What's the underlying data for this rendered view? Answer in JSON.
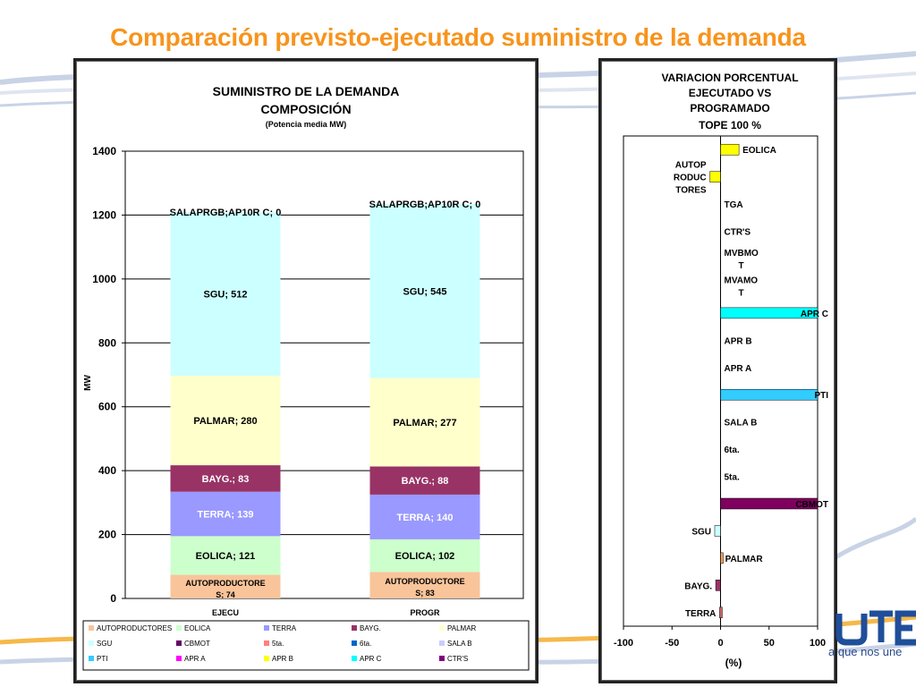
{
  "slide": {
    "title": "Comparación previsto-ejecutado suministro de la demanda",
    "tagline": "a que nos une"
  },
  "colors": {
    "title": "#f7941d",
    "AUTOPRODUCTORES": "#f9c49a",
    "EOLICA": "#ccffcc",
    "TERRA": "#9999ff",
    "BAYG.": "#993366",
    "PALMAR": "#ffffcc",
    "SGU": "#ccffff",
    "CBMOT": "#660066",
    "5ta.": "#ff8080",
    "6ta.": "#0066cc",
    "SALA B": "#ccccff",
    "PTI": "#33ccff",
    "APR A": "#ff00ff",
    "APR B": "#ffff00",
    "APR C": "#00ffff",
    "CTR'S": "#800080"
  },
  "chart_data": [
    {
      "type": "bar",
      "stacked": true,
      "title": "SUMINISTRO DE LA DEMANDA",
      "subtitle": "COMPOSICIÓN",
      "subtitle2": "(Potencia media MW)",
      "ylabel": "MW",
      "xlabel": "",
      "ylim": [
        0,
        1400
      ],
      "yticks": [
        "0",
        "200",
        "400",
        "600",
        "800",
        "1000",
        "1200",
        "1400"
      ],
      "grid": true,
      "legend_position": "bottom",
      "categories": [
        "EJECU",
        "PROGR"
      ],
      "series": [
        {
          "name": "AUTOPRODUCTORES",
          "values": [
            74,
            83
          ],
          "labels": [
            "AUTOPRODUCTORE S; 74",
            "AUTOPRODUCTORE S; 83"
          ]
        },
        {
          "name": "EOLICA",
          "values": [
            121,
            102
          ],
          "labels": [
            "EOLICA; 121",
            "EOLICA; 102"
          ]
        },
        {
          "name": "TERRA",
          "values": [
            139,
            140
          ],
          "labels": [
            "TERRA; 139",
            "TERRA; 140"
          ]
        },
        {
          "name": "BAYG.",
          "values": [
            83,
            88
          ],
          "labels": [
            "BAYG.; 83",
            "BAYG.; 88"
          ]
        },
        {
          "name": "PALMAR",
          "values": [
            280,
            277
          ],
          "labels": [
            "PALMAR; 280",
            "PALMAR; 277"
          ]
        },
        {
          "name": "SGU",
          "values": [
            512,
            545
          ],
          "labels": [
            "SGU; 512",
            "SGU; 545"
          ]
        },
        {
          "name": "CBMOT",
          "values": [
            0,
            0
          ]
        },
        {
          "name": "5ta.",
          "values": [
            0,
            0
          ]
        },
        {
          "name": "6ta.",
          "values": [
            0,
            0
          ]
        },
        {
          "name": "SALA B",
          "values": [
            0,
            0
          ]
        },
        {
          "name": "PTI",
          "values": [
            0,
            0
          ]
        },
        {
          "name": "APR A",
          "values": [
            0,
            0
          ]
        },
        {
          "name": "APR B",
          "values": [
            0,
            0
          ]
        },
        {
          "name": "APR C",
          "values": [
            0,
            0
          ]
        },
        {
          "name": "CTR'S",
          "values": [
            0,
            0
          ]
        }
      ],
      "top_labels": [
        "SALAPRGB;AP10R C; 0",
        "SALAPRGB;AP10R C; 0"
      ],
      "legend": [
        "AUTOPRODUCTORES",
        "EOLICA",
        "TERRA",
        "BAYG.",
        "PALMAR",
        "SGU",
        "CBMOT",
        "5ta.",
        "6ta.",
        "SALA B",
        "PTI",
        "APR A",
        "APR B",
        "APR C",
        "CTR'S"
      ]
    },
    {
      "type": "bar",
      "orientation": "horizontal",
      "title_lines": [
        "VARIACION PORCENTUAL",
        "EJECUTADO VS",
        "PROGRAMADO",
        "TOPE 100 %"
      ],
      "xlabel": "(%)",
      "xlim": [
        -100,
        100
      ],
      "xticks": [
        "-100",
        "-50",
        "0",
        "50",
        "100"
      ],
      "categories": [
        "EOLICA",
        "AUTOP RODUC TORES",
        "TGA",
        "CTR'S",
        "MVBMO T",
        "MVAMO T",
        "APR C",
        "APR B",
        "APR A",
        "PTI",
        "SALA B",
        "6ta.",
        "5ta.",
        "CBMOT",
        "SGU",
        "PALMAR",
        "BAYG.",
        "TERRA"
      ],
      "values": [
        19,
        -11,
        0,
        0,
        0,
        0,
        100,
        0,
        0,
        100,
        0,
        0,
        0,
        100,
        -6,
        1,
        -5,
        -1
      ]
    }
  ]
}
